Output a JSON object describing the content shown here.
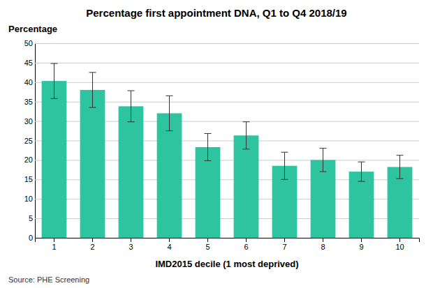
{
  "chart_data": {
    "type": "bar",
    "title": "Percentage first appointment DNA, Q1 to Q4 2018/19",
    "ylabel": "Percentage",
    "xlabel": "IMD2015 decile (1 most deprived)",
    "source": "Source: PHE Screening",
    "categories": [
      1,
      2,
      3,
      4,
      5,
      6,
      7,
      8,
      9,
      10
    ],
    "values": [
      40.3,
      38.0,
      33.8,
      32.0,
      23.3,
      26.3,
      18.5,
      20.0,
      17.0,
      18.2
    ],
    "error_lower": [
      4.5,
      4.5,
      4.0,
      4.5,
      3.5,
      3.5,
      3.5,
      3.0,
      2.5,
      3.0
    ],
    "error_upper": [
      4.5,
      4.5,
      4.0,
      4.5,
      3.5,
      3.5,
      3.5,
      3.0,
      2.5,
      3.0
    ],
    "color": "#2EC4A0",
    "ylim": [
      0,
      50
    ],
    "yticks": [
      0,
      5,
      10,
      15,
      20,
      25,
      30,
      35,
      40,
      45,
      50
    ],
    "grid": true
  }
}
